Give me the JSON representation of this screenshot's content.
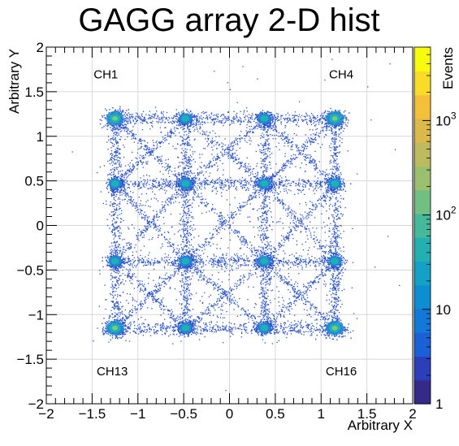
{
  "chart_data": {
    "type": "heatmap",
    "title": "GAGG array 2-D hist",
    "xlabel": "Arbitrary X",
    "ylabel": "Arbitrary Y",
    "zlabel": "Events",
    "xlim": [
      -2,
      2
    ],
    "ylim": [
      -2,
      2
    ],
    "x_ticks": [
      {
        "v": -2,
        "label": "−2"
      },
      {
        "v": -1.5,
        "label": "−1.5"
      },
      {
        "v": -1,
        "label": "−1"
      },
      {
        "v": -0.5,
        "label": "−0.5"
      },
      {
        "v": 0,
        "label": "0"
      },
      {
        "v": 0.5,
        "label": "0.5"
      },
      {
        "v": 1,
        "label": "1"
      },
      {
        "v": 1.5,
        "label": "1.5"
      },
      {
        "v": 2,
        "label": "2"
      }
    ],
    "y_ticks": [
      {
        "v": -2,
        "label": "−2"
      },
      {
        "v": -1.5,
        "label": "−1.5"
      },
      {
        "v": -1,
        "label": "−1"
      },
      {
        "v": -0.5,
        "label": "−0.5"
      },
      {
        "v": 0,
        "label": "0"
      },
      {
        "v": 0.5,
        "label": "0.5"
      },
      {
        "v": 1,
        "label": "1"
      },
      {
        "v": 1.5,
        "label": "1.5"
      },
      {
        "v": 2,
        "label": "2"
      }
    ],
    "z_scale": "log",
    "zlim": [
      1,
      6000
    ],
    "z_ticks": [
      {
        "v": 1,
        "label": "1"
      },
      {
        "v": 10,
        "label": "10"
      },
      {
        "v": 100,
        "label": "10",
        "sup": "2"
      },
      {
        "v": 1000,
        "label": "10",
        "sup": "3"
      }
    ],
    "grid": true,
    "palette": [
      "#352a87",
      "#2a3fb8",
      "#1a60d6",
      "#1279d8",
      "#0d8ed2",
      "#13a1c5",
      "#22b0b1",
      "#45b99a",
      "#72bf84",
      "#9abf6f",
      "#bdbb5e",
      "#dcb94b",
      "#f4c03a",
      "#f9dc28",
      "#f9fb0e"
    ],
    "point_color": "#2a52c7",
    "peak_colors": [
      "#2a52c7",
      "#1f8dd6",
      "#1fb7b0",
      "#8ccf6a",
      "#f4e51c"
    ],
    "channel_labels": [
      {
        "text": "CH1",
        "x": -1.35,
        "y": 1.65
      },
      {
        "text": "CH4",
        "x": 1.22,
        "y": 1.65
      },
      {
        "text": "CH13",
        "x": -1.28,
        "y": -1.68
      },
      {
        "text": "CH16",
        "x": 1.22,
        "y": -1.68
      }
    ],
    "peak_grid_x": [
      -1.25,
      -0.48,
      0.38,
      1.15
    ],
    "peak_grid_y": [
      1.2,
      0.47,
      -0.4,
      -1.15
    ],
    "peaks": [
      {
        "x": -1.25,
        "y": 1.2,
        "z": 3000
      },
      {
        "x": -0.48,
        "y": 1.2,
        "z": 1500
      },
      {
        "x": 0.38,
        "y": 1.2,
        "z": 1500
      },
      {
        "x": 1.15,
        "y": 1.2,
        "z": 3000
      },
      {
        "x": -1.25,
        "y": 0.47,
        "z": 1500
      },
      {
        "x": -0.48,
        "y": 0.47,
        "z": 800
      },
      {
        "x": 0.38,
        "y": 0.47,
        "z": 800
      },
      {
        "x": 1.15,
        "y": 0.47,
        "z": 1500
      },
      {
        "x": -1.25,
        "y": -0.4,
        "z": 1500
      },
      {
        "x": -0.48,
        "y": -0.4,
        "z": 800
      },
      {
        "x": 0.38,
        "y": -0.4,
        "z": 800
      },
      {
        "x": 1.15,
        "y": -0.4,
        "z": 1500
      },
      {
        "x": -1.25,
        "y": -1.15,
        "z": 3000
      },
      {
        "x": -0.48,
        "y": -1.15,
        "z": 1500
      },
      {
        "x": 0.38,
        "y": -1.15,
        "z": 1500
      },
      {
        "x": 1.15,
        "y": -1.15,
        "z": 3000
      }
    ]
  }
}
